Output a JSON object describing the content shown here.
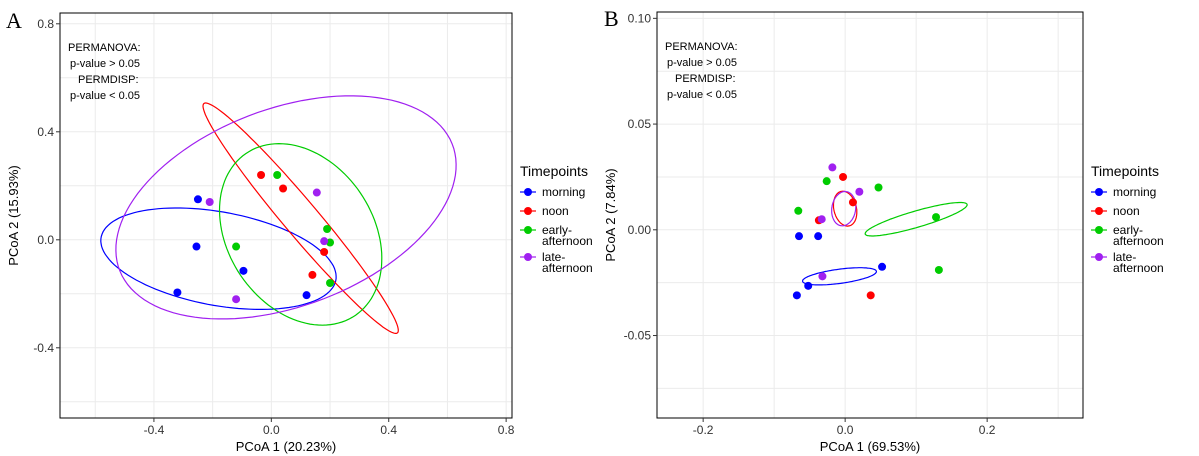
{
  "colors": {
    "morning": "#0000ff",
    "noon": "#ff0000",
    "early_afternoon": "#00cc00",
    "late_afternoon": "#a020f0"
  },
  "legend": {
    "title": "Timepoints",
    "items": [
      {
        "key": "morning",
        "lines": [
          "morning"
        ]
      },
      {
        "key": "noon",
        "lines": [
          "noon"
        ]
      },
      {
        "key": "early_afternoon",
        "lines": [
          "early-",
          "afternoon"
        ]
      },
      {
        "key": "late_afternoon",
        "lines": [
          "late-",
          "afternoon"
        ]
      }
    ]
  },
  "chart_data": [
    {
      "panel": "A",
      "type": "scatter",
      "xlabel": "PCoA 1 (20.23%)",
      "ylabel": "PCoA 2 (15.93%)",
      "xlim": [
        -0.72,
        0.82
      ],
      "ylim": [
        -0.66,
        0.84
      ],
      "xticks": [
        -0.4,
        0,
        0.4,
        0.8
      ],
      "xtick_labels": [
        "-0.4",
        "0.0",
        "0.4",
        "0.8"
      ],
      "yticks": [
        -0.4,
        0,
        0.4,
        0.8
      ],
      "ytick_labels": [
        "-0.4",
        "0.0",
        "0.4",
        "0.8"
      ],
      "grid": true,
      "annotations": [
        "PERMANOVA:",
        "p-value > 0.05",
        "PERMDISP:",
        "p-value < 0.05"
      ],
      "series": [
        {
          "name": "morning",
          "points": [
            [
              -0.25,
              0.15
            ],
            [
              -0.255,
              -0.025
            ],
            [
              -0.095,
              -0.115
            ],
            [
              -0.32,
              -0.195
            ],
            [
              0.12,
              -0.205
            ]
          ],
          "ellipse": {
            "cx": -0.18,
            "cy": -0.07,
            "rx": 0.53,
            "ry": 0.23,
            "angle": -12
          }
        },
        {
          "name": "noon",
          "points": [
            [
              -0.035,
              0.24
            ],
            [
              0.04,
              0.19
            ],
            [
              0.18,
              -0.045
            ],
            [
              0.14,
              -0.13
            ]
          ],
          "ellipse": {
            "cx": 0.1,
            "cy": 0.08,
            "rx": 0.71,
            "ry": 0.08,
            "angle": -53
          }
        },
        {
          "name": "early-afternoon",
          "points": [
            [
              0.02,
              0.24
            ],
            [
              0.19,
              0.04
            ],
            [
              0.2,
              -0.01
            ],
            [
              -0.12,
              -0.025
            ],
            [
              0.2,
              -0.16
            ]
          ],
          "ellipse": {
            "cx": 0.1,
            "cy": 0.02,
            "rx": 0.33,
            "ry": 0.47,
            "angle": 25
          }
        },
        {
          "name": "late-afternoon",
          "points": [
            [
              -0.21,
              0.14
            ],
            [
              0.155,
              0.175
            ],
            [
              0.18,
              -0.005
            ],
            [
              -0.12,
              -0.22
            ]
          ],
          "ellipse": {
            "cx": 0.05,
            "cy": 0.12,
            "rx": 0.8,
            "ry": 0.48,
            "angle": 25
          }
        }
      ]
    },
    {
      "panel": "B",
      "type": "scatter",
      "xlabel": "PCoA 1 (69.53%)",
      "ylabel": "PCoA 2 (7.84%)",
      "xlim": [
        -0.265,
        0.335
      ],
      "ylim": [
        -0.089,
        0.103
      ],
      "xticks": [
        -0.2,
        0,
        0.2
      ],
      "xtick_labels": [
        "-0.2",
        "0.0",
        "0.2"
      ],
      "yticks": [
        -0.05,
        0,
        0.05,
        0.1
      ],
      "ytick_labels": [
        "-0.05",
        "0.00",
        "0.05",
        "0.10"
      ],
      "grid": true,
      "annotations": [
        "PERMANOVA:",
        "p-value > 0.05",
        "PERMDISP:",
        "p-value < 0.05"
      ],
      "series": [
        {
          "name": "morning",
          "points": [
            [
              -0.065,
              -0.003
            ],
            [
              -0.038,
              -0.003
            ],
            [
              0.052,
              -0.0175
            ],
            [
              -0.052,
              -0.0265
            ],
            [
              -0.068,
              -0.031
            ]
          ],
          "ellipse": {
            "cx": -0.008,
            "cy": -0.022,
            "rx": 0.175,
            "ry": 0.035,
            "angle": 8
          }
        },
        {
          "name": "noon",
          "points": [
            [
              -0.003,
              0.025
            ],
            [
              0.011,
              0.013
            ],
            [
              -0.037,
              0.0045
            ],
            [
              0.036,
              -0.031
            ]
          ],
          "ellipse": {
            "cx": 0.0,
            "cy": 0.01,
            "rx": 0.053,
            "ry": 0.087,
            "angle": 12
          }
        },
        {
          "name": "early-afternoon",
          "points": [
            [
              -0.026,
              0.023
            ],
            [
              0.047,
              0.02
            ],
            [
              -0.066,
              0.009
            ],
            [
              0.128,
              0.006
            ],
            [
              0.132,
              -0.019
            ]
          ],
          "ellipse": {
            "cx": 0.1,
            "cy": 0.005,
            "rx": 0.25,
            "ry": 0.04,
            "angle": 17
          }
        },
        {
          "name": "late-afternoon",
          "points": [
            [
              -0.018,
              0.0295
            ],
            [
              0.02,
              0.018
            ],
            [
              -0.033,
              0.005
            ],
            [
              -0.032,
              -0.022
            ]
          ],
          "ellipse": {
            "cx": -0.002,
            "cy": 0.01,
            "rx": 0.056,
            "ry": 0.085,
            "angle": -8
          }
        }
      ]
    }
  ]
}
